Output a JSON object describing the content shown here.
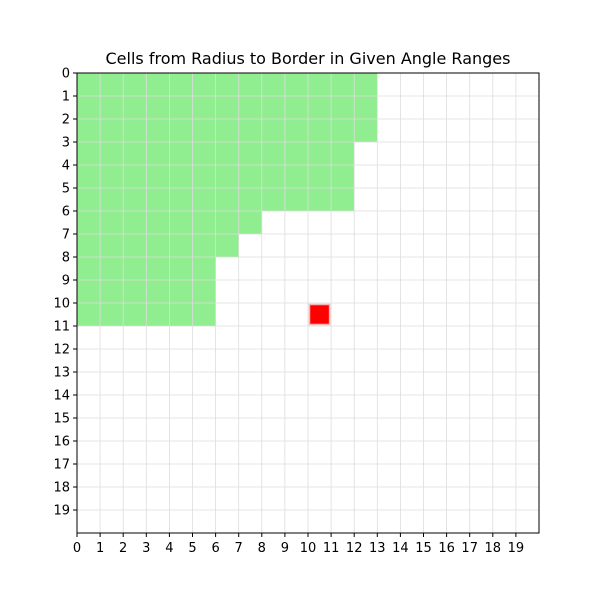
{
  "chart_data": {
    "type": "heatmap",
    "title": "Cells from Radius to Border in Given Angle Ranges",
    "xlabel": "",
    "ylabel": "",
    "grid": true,
    "xlim": [
      0,
      20
    ],
    "ylim": [
      0,
      20
    ],
    "y_inverted": true,
    "x_ticks": [
      0,
      1,
      2,
      3,
      4,
      5,
      6,
      7,
      8,
      9,
      10,
      11,
      12,
      13,
      14,
      15,
      16,
      17,
      18,
      19
    ],
    "y_ticks": [
      0,
      1,
      2,
      3,
      4,
      5,
      6,
      7,
      8,
      9,
      10,
      11,
      12,
      13,
      14,
      15,
      16,
      17,
      18,
      19
    ],
    "colors": {
      "highlight": "#90ee90",
      "marker": "#ff0000",
      "grid": "#dddddd",
      "axis": "#000000"
    },
    "highlighted_rows": [
      {
        "row": 0,
        "x_start": 0,
        "x_end": 13
      },
      {
        "row": 1,
        "x_start": 0,
        "x_end": 13
      },
      {
        "row": 2,
        "x_start": 0,
        "x_end": 13
      },
      {
        "row": 3,
        "x_start": 0,
        "x_end": 12
      },
      {
        "row": 4,
        "x_start": 0,
        "x_end": 12
      },
      {
        "row": 5,
        "x_start": 0,
        "x_end": 12
      },
      {
        "row": 6,
        "x_start": 0,
        "x_end": 8
      },
      {
        "row": 7,
        "x_start": 0,
        "x_end": 7
      },
      {
        "row": 8,
        "x_start": 0,
        "x_end": 6
      },
      {
        "row": 9,
        "x_start": 0,
        "x_end": 6
      },
      {
        "row": 10,
        "x_start": 0,
        "x_end": 6
      }
    ],
    "marker_cell": {
      "x": 10,
      "y": 10
    }
  }
}
